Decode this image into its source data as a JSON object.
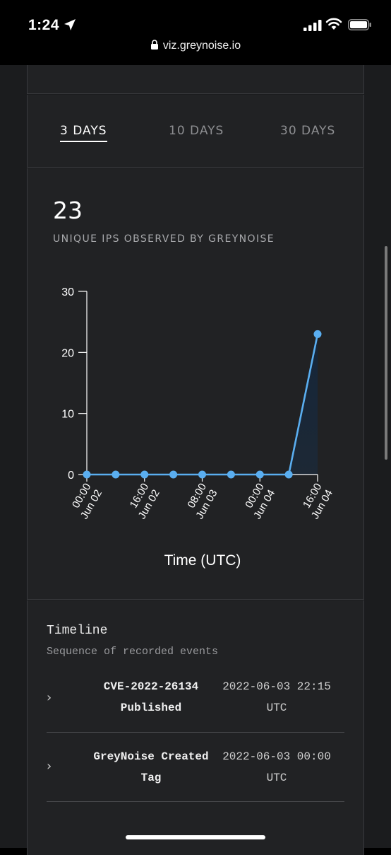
{
  "status_bar": {
    "time": "1:24"
  },
  "browser": {
    "url": "viz.greynoise.io"
  },
  "tabs": [
    {
      "label": "3 DAYS",
      "active": true
    },
    {
      "label": "10 DAYS",
      "active": false
    },
    {
      "label": "30 DAYS",
      "active": false
    }
  ],
  "summary": {
    "count": "23",
    "caption": "UNIQUE IPS OBSERVED BY GREYNOISE"
  },
  "chart_data": {
    "type": "area",
    "xlabel": "Time (UTC)",
    "ylabel": "",
    "ylim": [
      0,
      30
    ],
    "yticks": [
      0,
      10,
      20,
      30
    ],
    "xticks": [
      {
        "index": 0,
        "label": [
          "00:00",
          "Jun 02"
        ]
      },
      {
        "index": 2,
        "label": [
          "16:00",
          "Jun 02"
        ]
      },
      {
        "index": 4,
        "label": [
          "08:00",
          "Jun 03"
        ]
      },
      {
        "index": 6,
        "label": [
          "00:00",
          "Jun 04"
        ]
      },
      {
        "index": 8,
        "label": [
          "16:00",
          "Jun 04"
        ]
      }
    ],
    "series": [
      {
        "values": [
          0,
          0,
          0,
          0,
          0,
          0,
          0,
          0,
          23
        ]
      }
    ],
    "line_color": "#5aaef0",
    "grid": false
  },
  "timeline": {
    "title": "Timeline",
    "subtitle": "Sequence of recorded events",
    "events": [
      {
        "name_line1": "CVE-2022-26134",
        "name_line2": "Published",
        "date": "2022-06-03 22:15",
        "tz": "UTC"
      },
      {
        "name_line1": "GreyNoise Created",
        "name_line2": "Tag",
        "date": "2022-06-03 00:00",
        "tz": "UTC"
      }
    ]
  },
  "icons": {
    "location": "location-arrow-icon",
    "signal": "cellular-signal-icon",
    "wifi": "wifi-icon",
    "battery": "battery-icon",
    "lock": "lock-icon",
    "chevron": "chevron-right-icon"
  }
}
